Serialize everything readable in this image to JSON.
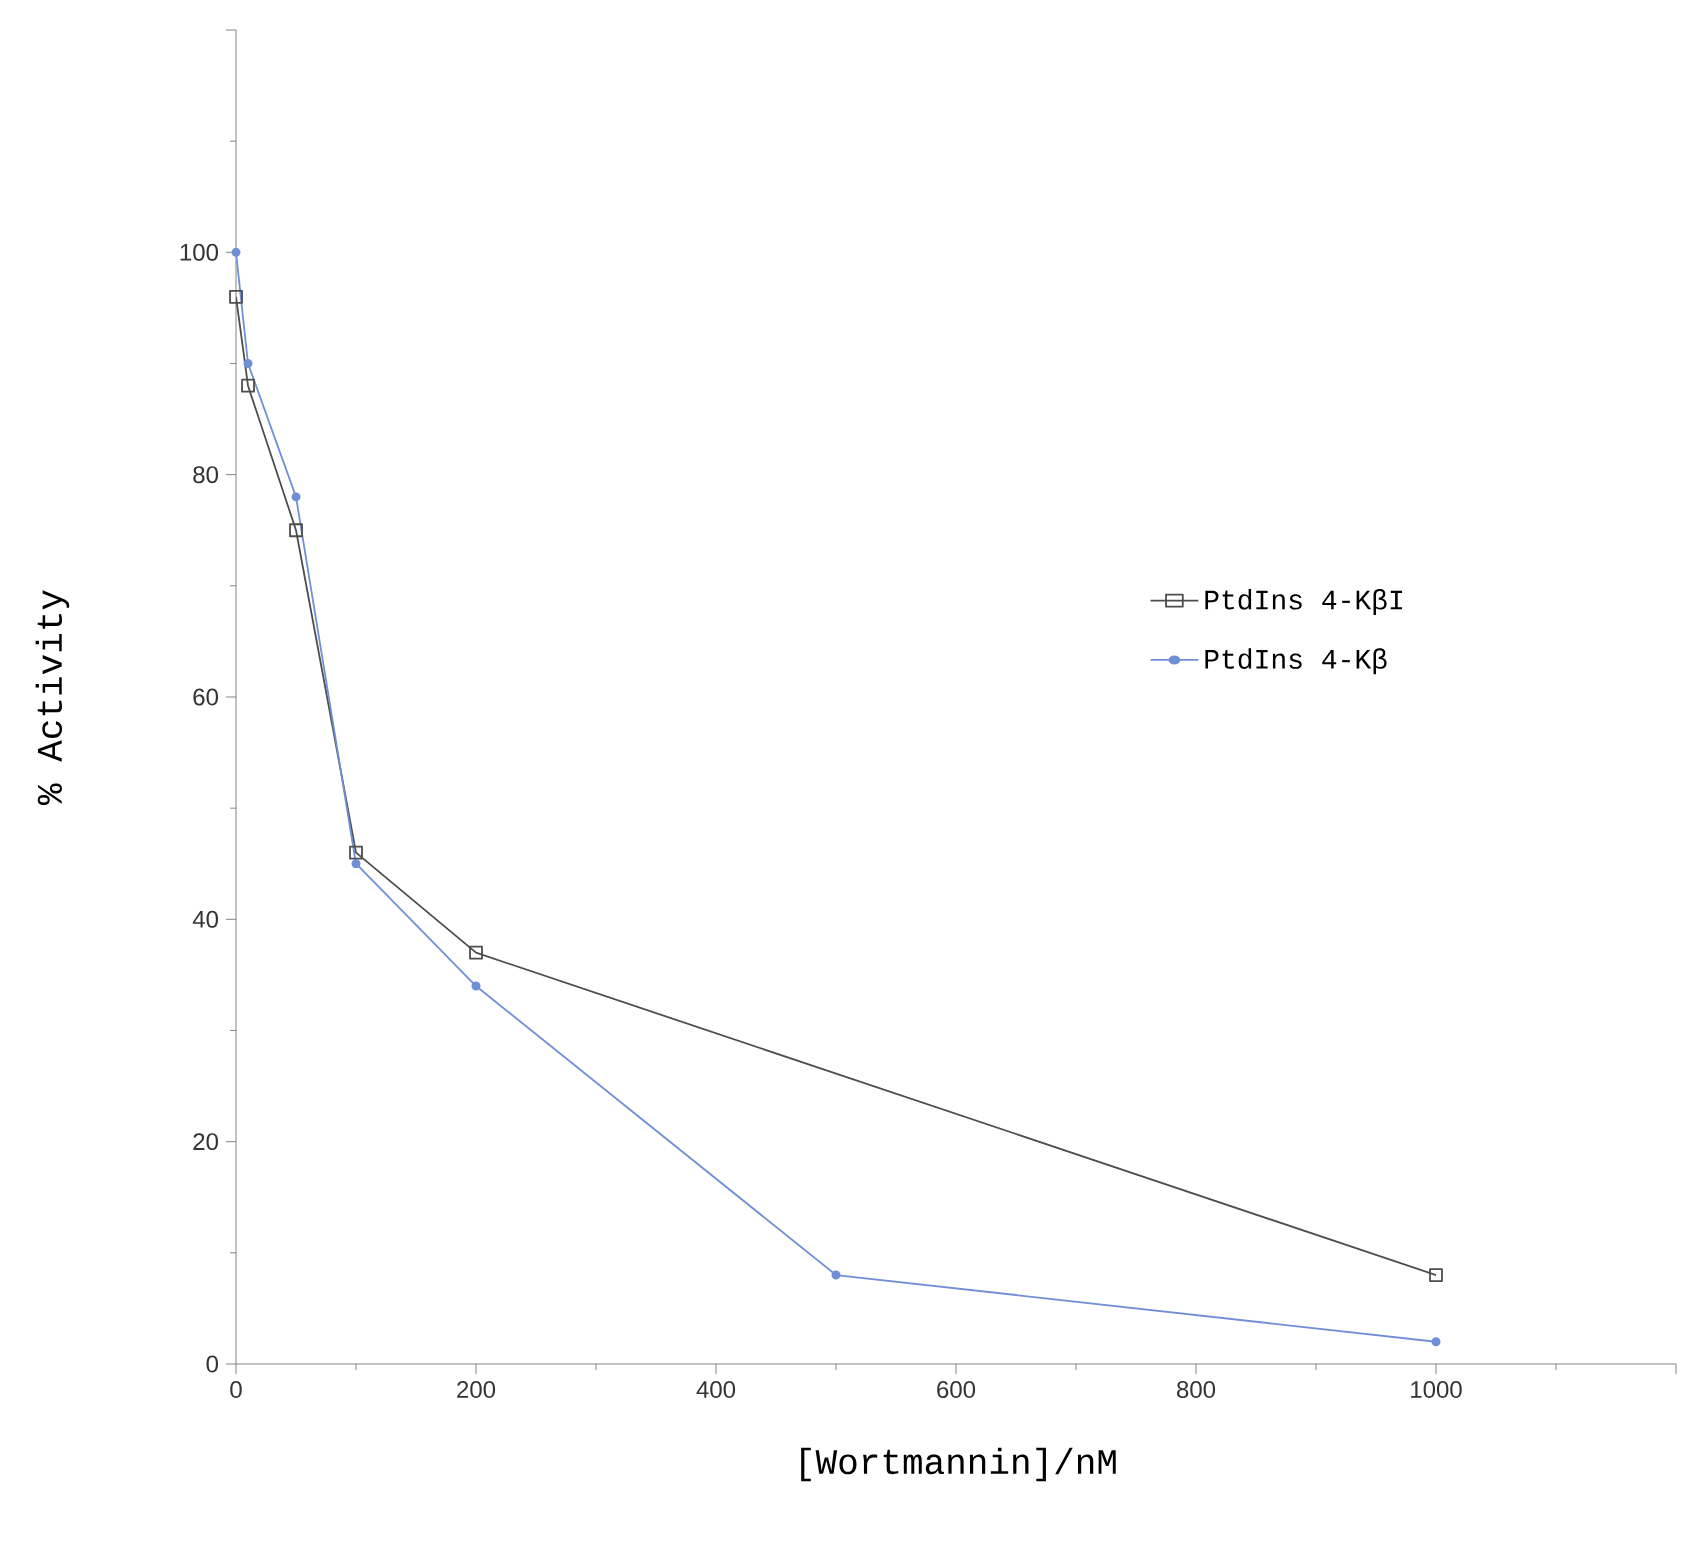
{
  "chart_data": {
    "type": "line",
    "xlabel": "[Wortmannin]/nM",
    "ylabel": "% Activity",
    "xlim": [
      0,
      1200
    ],
    "ylim": [
      0,
      120
    ],
    "xticks": [
      0,
      200,
      400,
      600,
      800,
      1000,
      {
        "value": 1200,
        "label": null
      }
    ],
    "yticks": [
      0,
      20,
      40,
      60,
      80,
      100,
      {
        "value": 120,
        "label": null
      }
    ],
    "legend": "right",
    "grid": false,
    "series": [
      {
        "name": "PtdIns 4-KβI",
        "color": "#4d4d4d",
        "marker": "square",
        "x": [
          0,
          10,
          50,
          100,
          200,
          1000
        ],
        "values": [
          96,
          88,
          75,
          46,
          37,
          8
        ]
      },
      {
        "name": "PtdIns 4-Kβ",
        "color": "#6f8fd6",
        "marker": "circle",
        "x": [
          0,
          10,
          50,
          100,
          200,
          500,
          1000
        ],
        "values": [
          100,
          90,
          78,
          45,
          34,
          8,
          2
        ]
      }
    ]
  }
}
